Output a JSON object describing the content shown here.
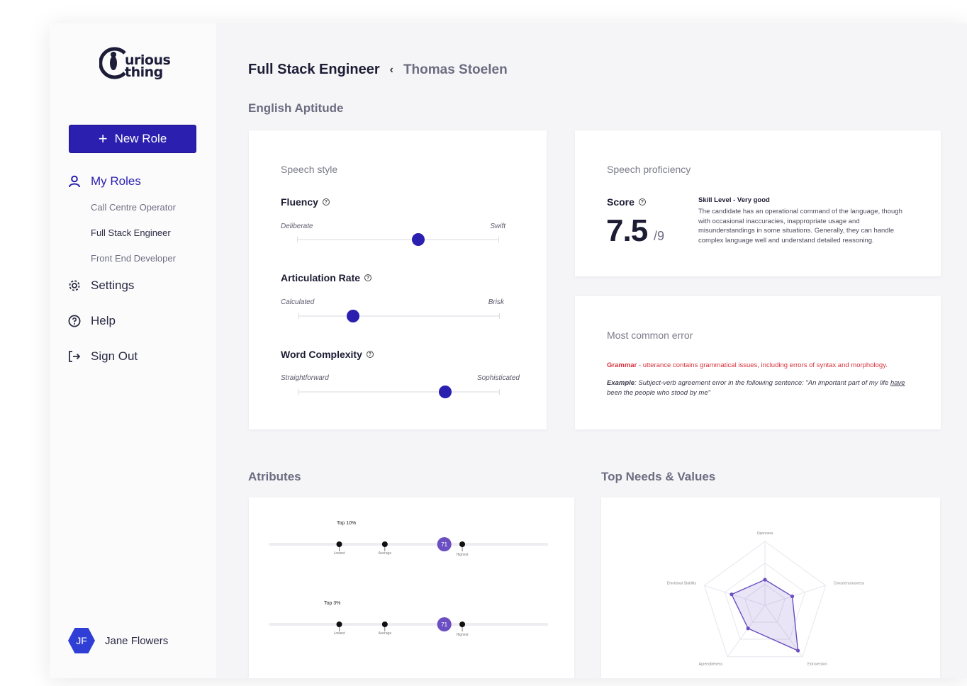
{
  "brand": {
    "logo_line1": "urious",
    "logo_line2": "thing"
  },
  "sidebar": {
    "new_role_label": "New Role",
    "my_roles_label": "My Roles",
    "roles": [
      "Call Centre Operator",
      "Full Stack Engineer",
      "Front End Developer"
    ],
    "settings_label": "Settings",
    "help_label": "Help",
    "sign_out_label": "Sign Out",
    "user": {
      "initials": "JF",
      "name": "Jane Flowers"
    }
  },
  "header": {
    "role": "Full Stack Engineer",
    "separator": "‹",
    "candidate": "Thomas Stoelen"
  },
  "english_aptitude": {
    "title": "English Aptitude",
    "speech_style": {
      "label": "Speech style",
      "metrics": [
        {
          "name": "Fluency",
          "left": "Deliberate",
          "right": "Swift",
          "value": 0.6
        },
        {
          "name": "Articulation Rate",
          "left": "Calculated",
          "right": "Brisk",
          "value": 0.27
        },
        {
          "name": "Word Complexity",
          "left": "Straightforward",
          "right": "Sophisticated",
          "value": 0.73
        }
      ]
    },
    "proficiency": {
      "label": "Speech proficiency",
      "score_label": "Score",
      "score": "7.5",
      "score_max": "/9",
      "skill_level": "Skill Level - Very good",
      "description": "The candidate has an operational command of the language, though with occasional inaccuracies, inappropriate usage and misunderstandings in some situations. Generally, they can handle complex language well and understand detailed reasoning."
    },
    "common_error": {
      "label": "Most common error",
      "type": "Grammar",
      "type_desc": " - utterance contains grammatical issues, including errors of syntax and morphology.",
      "example_label": "Example",
      "example_text": ": Subject-verb agreement error in the following sentence: \"An important part of my life ",
      "example_emph": "have",
      "example_tail": " been the people who stood by me\""
    }
  },
  "attributes": {
    "title": "Atributes",
    "rows": [
      {
        "tag": "Top 10%",
        "score": "71",
        "lowest": "Lowest",
        "average": "Average",
        "highest": "Highest",
        "lowest_pos": 0.25,
        "average_pos": 0.415,
        "score_pos": 0.63,
        "highest_pos": 0.695
      },
      {
        "tag": "Top 3%",
        "score": "71",
        "lowest": "Lowest",
        "average": "Average",
        "highest": "Highest",
        "lowest_pos": 0.25,
        "average_pos": 0.415,
        "score_pos": 0.63,
        "highest_pos": 0.695
      }
    ]
  },
  "needs_values": {
    "title": "Top Needs & Values",
    "axes": [
      "Openness",
      "Conscienciousness",
      "Extraversion",
      "Agreeableness",
      "Emotional Stability"
    ],
    "values": [
      0.4,
      0.45,
      0.88,
      0.45,
      0.55
    ],
    "accent": "#6b4fc2"
  },
  "colors": {
    "primary": "#2a1fae",
    "error": "#d6313c"
  }
}
